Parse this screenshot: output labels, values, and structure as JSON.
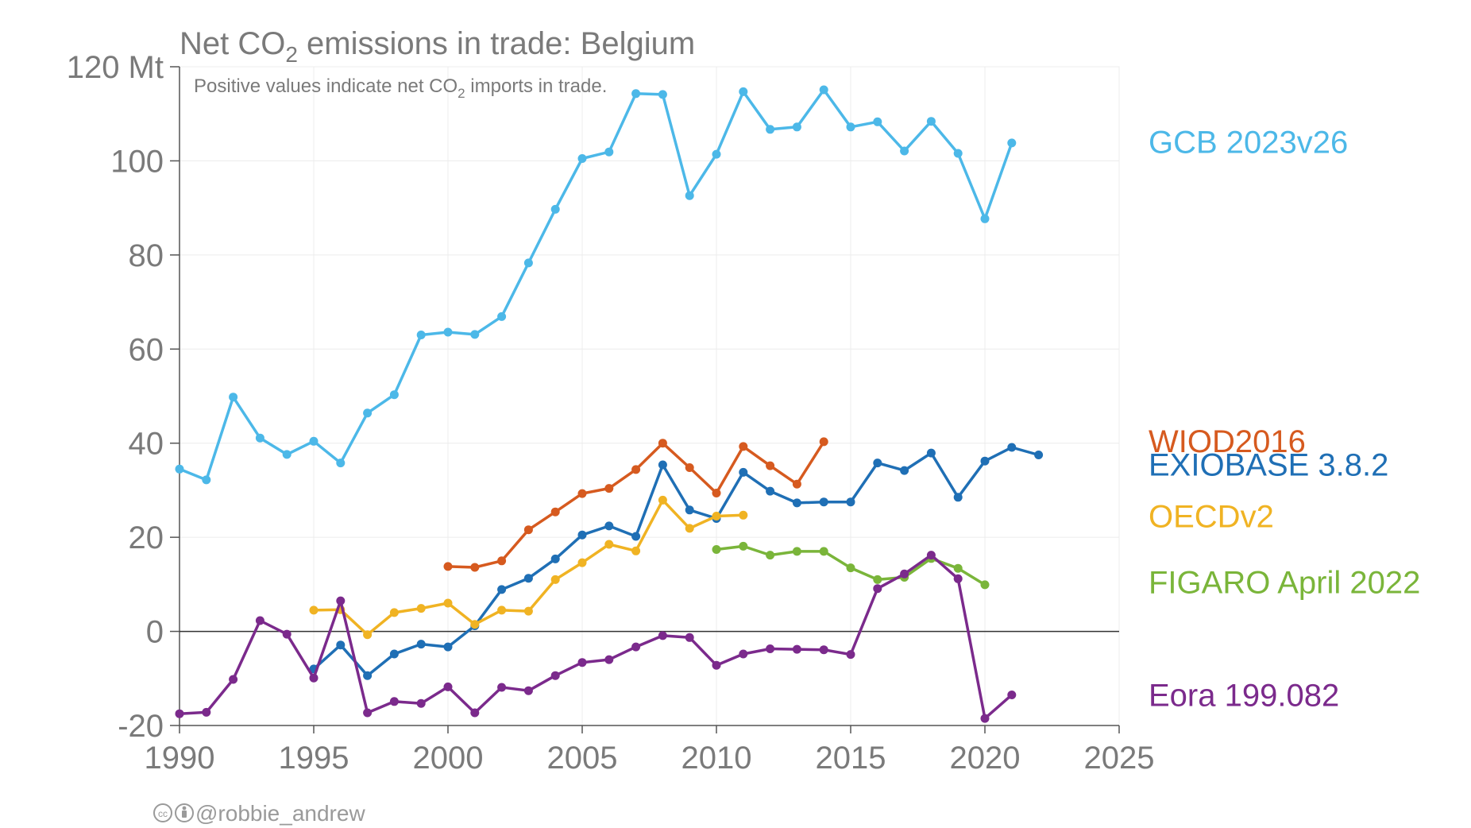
{
  "chart_data": {
    "type": "line",
    "title_prefix": "Net CO",
    "title_sub": "2",
    "title_suffix": " emissions in trade: Belgium",
    "subtitle_prefix": "Positive values indicate net CO",
    "subtitle_sub": "2",
    "subtitle_suffix": " imports in trade.",
    "xlim": [
      1990,
      2025
    ],
    "ylim": [
      -20,
      120
    ],
    "xticks": [
      1990,
      1995,
      2000,
      2005,
      2010,
      2015,
      2020,
      2025
    ],
    "xtick_labels": [
      "1990",
      "1995",
      "2000",
      "2005",
      "2010",
      "2015",
      "2020",
      "2025"
    ],
    "yticks": [
      -20,
      0,
      20,
      40,
      60,
      80,
      100,
      120
    ],
    "ytick_labels": [
      "-20",
      "0",
      "20",
      "40",
      "60",
      "80",
      "100",
      "120 Mt"
    ],
    "grid": true,
    "zero_line": true,
    "legend_placement": "right, direct labels",
    "series": [
      {
        "name": "GCB 2023v26",
        "color": "#4cb8e8",
        "x": [
          1990,
          1991,
          1992,
          1993,
          1994,
          1995,
          1996,
          1997,
          1998,
          1999,
          2000,
          2001,
          2002,
          2003,
          2004,
          2005,
          2006,
          2007,
          2008,
          2009,
          2010,
          2011,
          2012,
          2013,
          2014,
          2015,
          2016,
          2017,
          2018,
          2019,
          2020,
          2021
        ],
        "y": [
          34.5,
          32.2,
          49.8,
          41.1,
          37.6,
          40.4,
          35.8,
          46.4,
          50.3,
          63,
          63.6,
          63.1,
          66.9,
          78.3,
          89.7,
          100.5,
          101.9,
          114.3,
          114.1,
          92.6,
          101.4,
          114.7,
          106.7,
          107.2,
          115.1,
          107.2,
          108.3,
          102.1,
          108.4,
          101.6,
          87.7,
          103.8
        ]
      },
      {
        "name": "WIOD2016",
        "color": "#d65a1f",
        "x": [
          2000,
          2001,
          2002,
          2003,
          2004,
          2005,
          2006,
          2007,
          2008,
          2009,
          2010,
          2011,
          2012,
          2013,
          2014
        ],
        "y": [
          13.8,
          13.6,
          15,
          21.6,
          25.4,
          29.3,
          30.4,
          34.4,
          40,
          34.8,
          29.4,
          39.3,
          35.2,
          31.3,
          40.3
        ]
      },
      {
        "name": "EXIOBASE 3.8.2",
        "color": "#1f6fb5",
        "x": [
          1995,
          1996,
          1997,
          1998,
          1999,
          2000,
          2001,
          2002,
          2003,
          2004,
          2005,
          2006,
          2007,
          2008,
          2009,
          2010,
          2011,
          2012,
          2013,
          2014,
          2015,
          2016,
          2017,
          2018,
          2019,
          2020,
          2021,
          2022
        ],
        "y": [
          -8,
          -2.9,
          -9.4,
          -4.8,
          -2.7,
          -3.3,
          1.2,
          8.9,
          11.3,
          15.4,
          20.5,
          22.4,
          20.2,
          35.4,
          25.8,
          24,
          33.8,
          29.8,
          27.3,
          27.5,
          27.5,
          35.8,
          34.2,
          37.9,
          28.5,
          36.2,
          39.1,
          37.5
        ]
      },
      {
        "name": "OECDv2",
        "color": "#f0b323",
        "x": [
          1995,
          1996,
          1997,
          1998,
          1999,
          2000,
          2001,
          2002,
          2003,
          2004,
          2005,
          2006,
          2007,
          2008,
          2009,
          2010,
          2011
        ],
        "y": [
          4.5,
          4.6,
          -0.7,
          4,
          4.9,
          6,
          1.5,
          4.5,
          4.3,
          11,
          14.6,
          18.5,
          17.1,
          27.9,
          21.9,
          24.5,
          24.7
        ]
      },
      {
        "name": "FIGARO April 2022",
        "color": "#7ab53a",
        "x": [
          2010,
          2011,
          2012,
          2013,
          2014,
          2015,
          2016,
          2017,
          2018,
          2019,
          2020
        ],
        "y": [
          17.4,
          18.1,
          16.2,
          17,
          17,
          13.5,
          11,
          11.5,
          15.5,
          13.4,
          9.9
        ]
      },
      {
        "name": "Eora 199.082",
        "color": "#7b2a8c",
        "x": [
          1990,
          1991,
          1992,
          1993,
          1994,
          1995,
          1996,
          1997,
          1998,
          1999,
          2000,
          2001,
          2002,
          2003,
          2004,
          2005,
          2006,
          2007,
          2008,
          2009,
          2010,
          2011,
          2012,
          2013,
          2014,
          2015,
          2016,
          2017,
          2018,
          2019,
          2020,
          2021
        ],
        "y": [
          -17.5,
          -17.2,
          -10.2,
          2.3,
          -0.6,
          -9.9,
          6.5,
          -17.3,
          -14.9,
          -15.3,
          -11.8,
          -17.3,
          -11.9,
          -12.6,
          -9.4,
          -6.6,
          -6,
          -3.3,
          -0.9,
          -1.3,
          -7.2,
          -4.8,
          -3.7,
          -3.8,
          -3.9,
          -4.9,
          9.1,
          12.2,
          16.2,
          11.2,
          -18.5,
          -13.5
        ]
      }
    ]
  },
  "credit": {
    "icons": [
      "cc-icon",
      "by-icon"
    ],
    "text": "@robbie_andrew"
  }
}
